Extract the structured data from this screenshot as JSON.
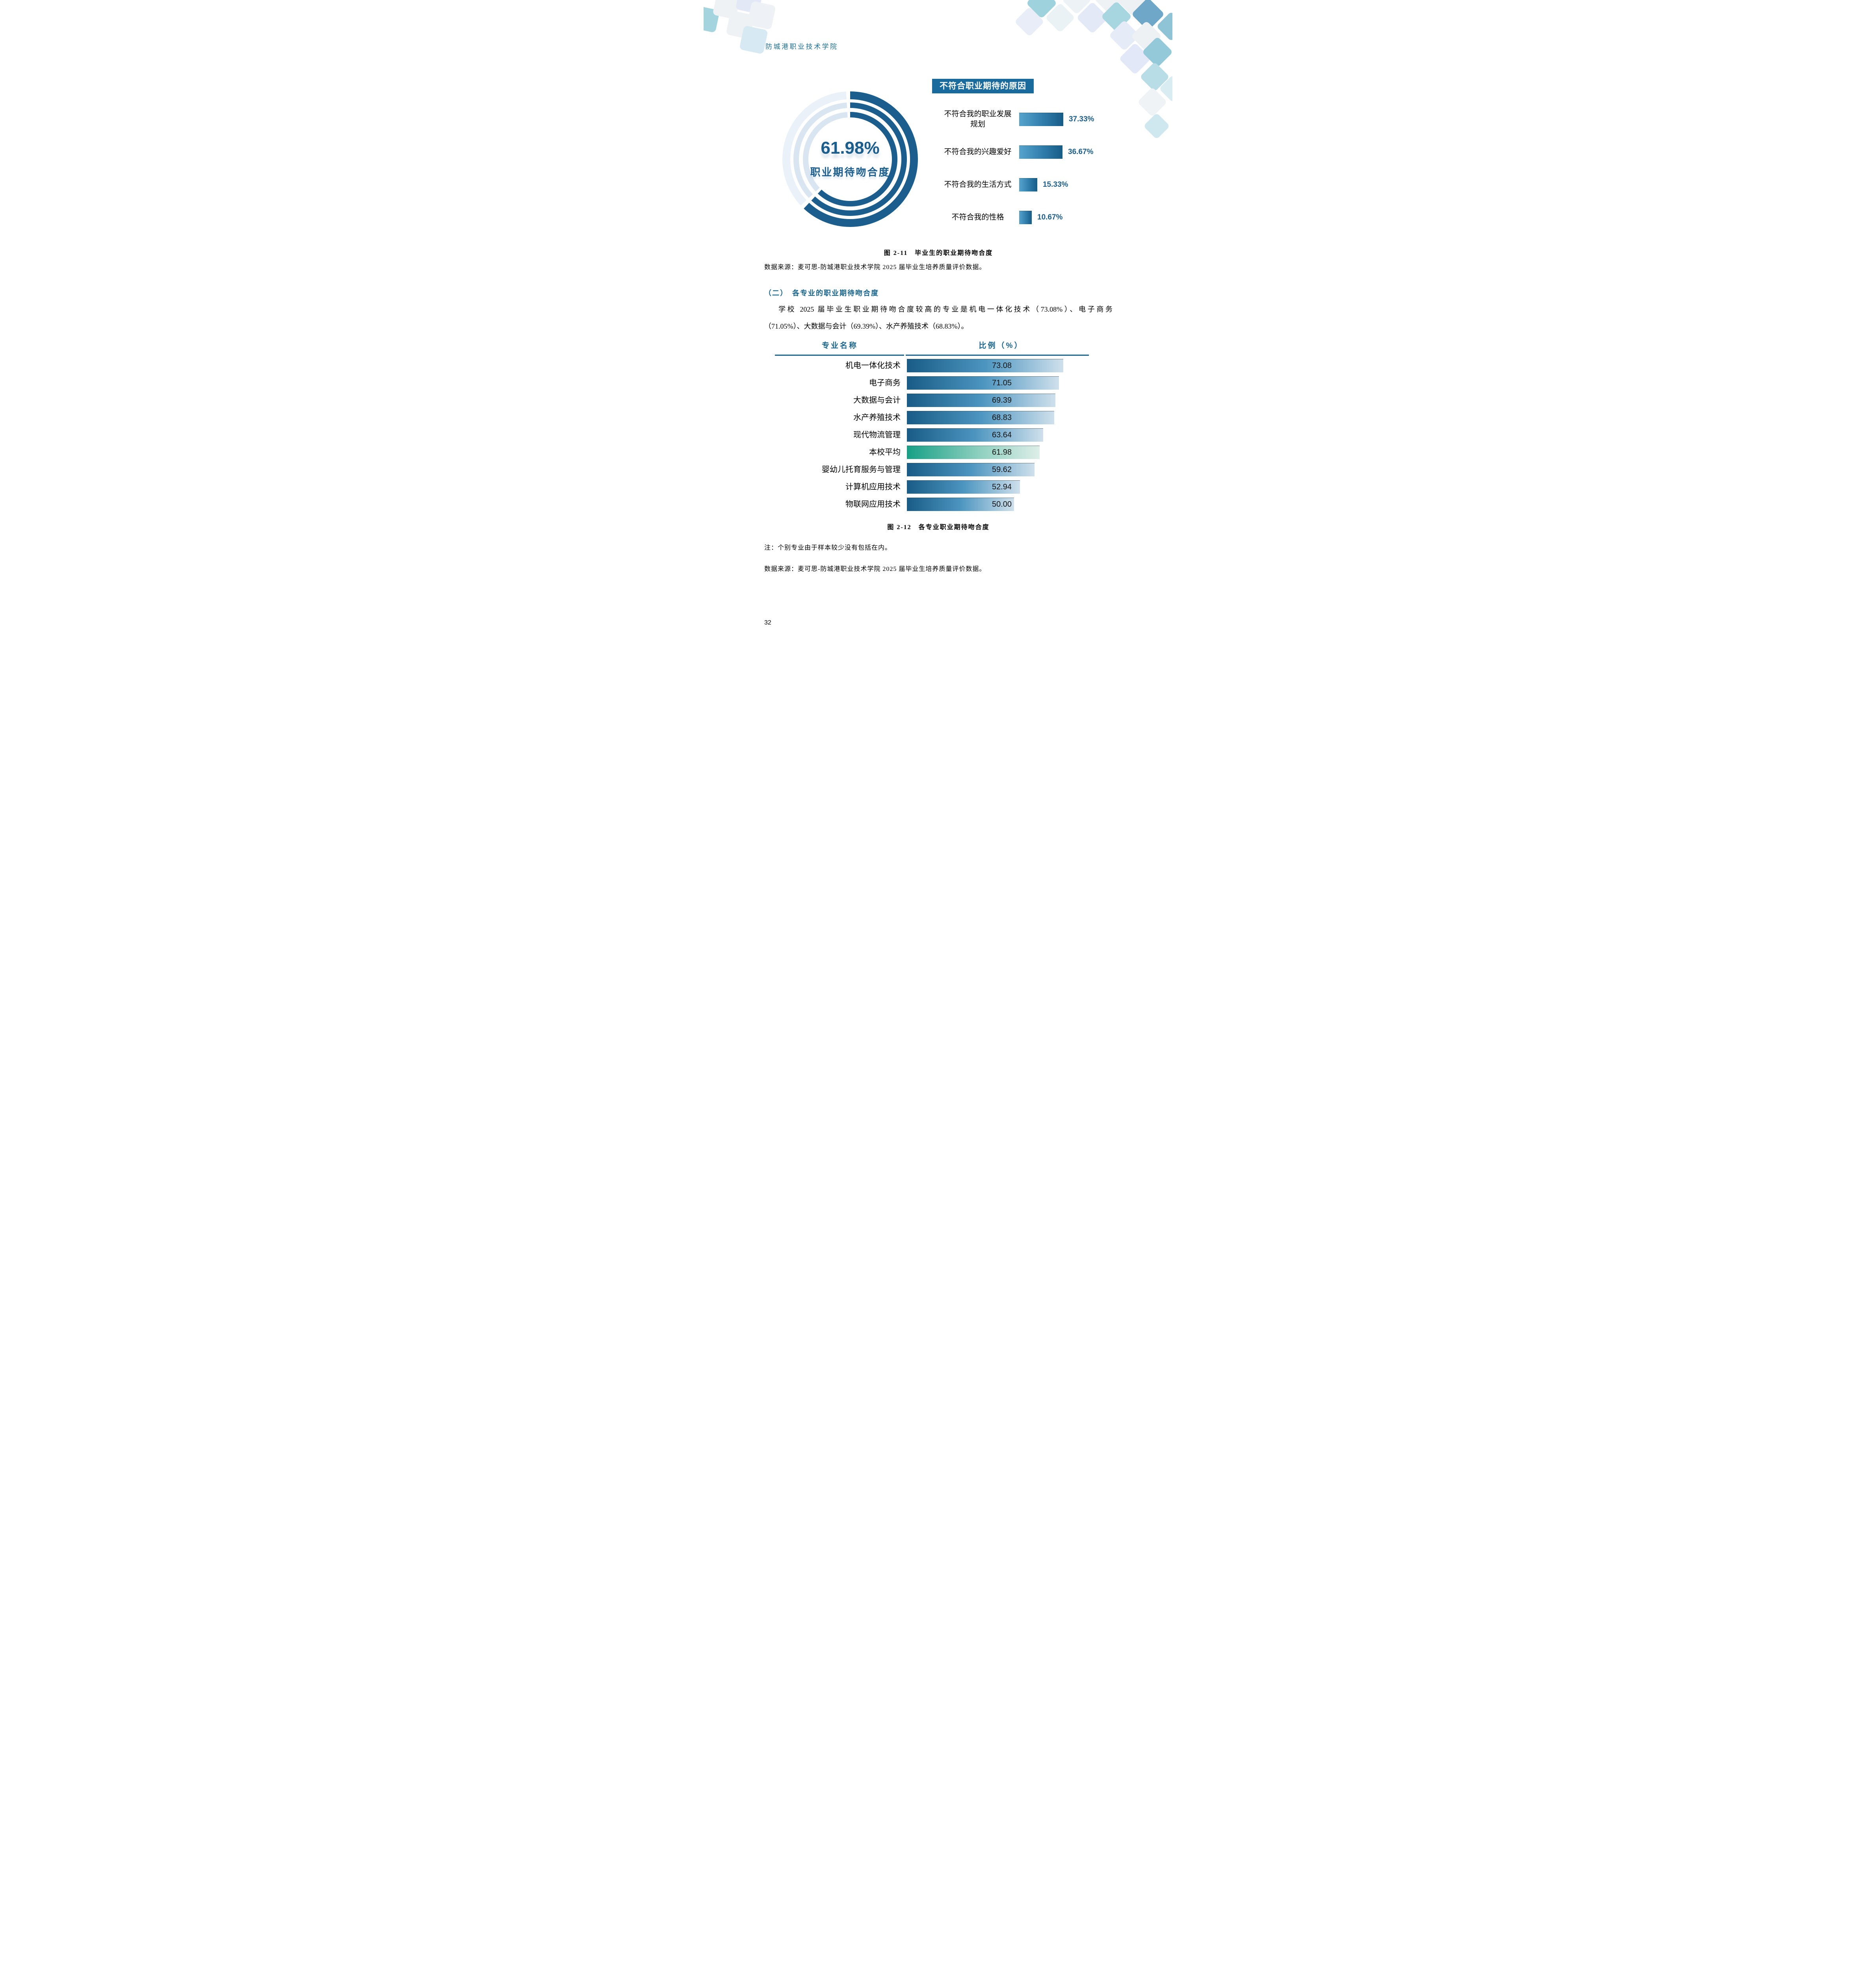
{
  "page": {
    "school_name": "防城港职业技术学院",
    "page_number": "32"
  },
  "donut": {
    "value": 61.98,
    "value_label": "61.98%",
    "caption": "职业期待吻合度",
    "dark_color": "#1b5d8c",
    "light_color": "#dce8f3"
  },
  "chart1": {
    "title": "不符合职业期待的原因",
    "items": [
      {
        "label": "不符合我的职业发展规划",
        "value": 37.33,
        "value_label": "37.33%"
      },
      {
        "label": "不符合我的兴趣爱好",
        "value": 36.67,
        "value_label": "36.67%"
      },
      {
        "label": "不符合我的生活方式",
        "value": 15.33,
        "value_label": "15.33%"
      },
      {
        "label": "不符合我的性格",
        "value": 10.67,
        "value_label": "10.67%"
      }
    ]
  },
  "figure1": {
    "caption": "图 2-11　毕业生的职业期待吻合度",
    "source": "数据来源：麦可思-防城港职业技术学院 2025 届毕业生培养质量评价数据。"
  },
  "section2": {
    "heading": "（二）　各专业的职业期待吻合度",
    "para_line1": "学校 2025 届毕业生职业期待吻合度较高的专业是机电一体化技术（73.08%）、电子商务",
    "para_line2": "（71.05%）、大数据与会计（69.39%）、水产养殖技术（68.83%）。"
  },
  "chart2": {
    "col_major": "专业名称",
    "col_ratio": "比例（%）",
    "rows": [
      {
        "label": "机电一体化技术",
        "value": 73.08,
        "value_label": "73.08",
        "highlight": false
      },
      {
        "label": "电子商务",
        "value": 71.05,
        "value_label": "71.05",
        "highlight": false
      },
      {
        "label": "大数据与会计",
        "value": 69.39,
        "value_label": "69.39",
        "highlight": false
      },
      {
        "label": "水产养殖技术",
        "value": 68.83,
        "value_label": "68.83",
        "highlight": false
      },
      {
        "label": "现代物流管理",
        "value": 63.64,
        "value_label": "63.64",
        "highlight": false
      },
      {
        "label": "本校平均",
        "value": 61.98,
        "value_label": "61.98",
        "highlight": true
      },
      {
        "label": "婴幼儿托育服务与管理",
        "value": 59.62,
        "value_label": "59.62",
        "highlight": false
      },
      {
        "label": "计算机应用技术",
        "value": 52.94,
        "value_label": "52.94",
        "highlight": false
      },
      {
        "label": "物联网应用技术",
        "value": 50.0,
        "value_label": "50.00",
        "highlight": false
      }
    ]
  },
  "figure2": {
    "caption": "图 2-12　各专业职业期待吻合度",
    "note": "注：个别专业由于样本较少没有包括在内。",
    "source": "数据来源：麦可思-防城港职业技术学院 2025 届毕业生培养质量评价数据。"
  },
  "decor_palette": [
    "#9ed3de",
    "#6fa7c8",
    "#e4e9f8",
    "#eef2f5",
    "#d7e9f2",
    "#a4d5df"
  ],
  "chart_data": [
    {
      "type": "pie",
      "subtype": "donut-triple-ring",
      "value": 61.98,
      "remainder": 38.02,
      "center_value_label": "61.98%",
      "center_caption": "职业期待吻合度",
      "arc_start": "top, clockwise",
      "colors": {
        "filled": "#1b5d8c",
        "unfilled": "#dce8f3"
      }
    },
    {
      "type": "bar",
      "orientation": "horizontal",
      "title": "不符合职业期待的原因",
      "categories": [
        "不符合我的职业发展规划",
        "不符合我的兴趣爱好",
        "不符合我的生活方式",
        "不符合我的性格"
      ],
      "values": [
        37.33,
        36.67,
        15.33,
        10.67
      ],
      "value_labels": [
        "37.33%",
        "36.67%",
        "15.33%",
        "10.67%"
      ],
      "value_label_position": "right-of-bar",
      "grid": false,
      "legend": false
    },
    {
      "type": "bar",
      "orientation": "horizontal",
      "title": "各专业职业期待吻合度",
      "columns": [
        "专业名称",
        "比例（%）"
      ],
      "categories": [
        "机电一体化技术",
        "电子商务",
        "大数据与会计",
        "水产养殖技术",
        "现代物流管理",
        "本校平均",
        "婴幼儿托育服务与管理",
        "计算机应用技术",
        "物联网应用技术"
      ],
      "values": [
        73.08,
        71.05,
        69.39,
        68.83,
        63.64,
        61.98,
        59.62,
        52.94,
        50.0
      ],
      "highlight_category": "本校平均",
      "value_label_position": "inside-bar-centered",
      "grid": false,
      "legend": false
    }
  ]
}
